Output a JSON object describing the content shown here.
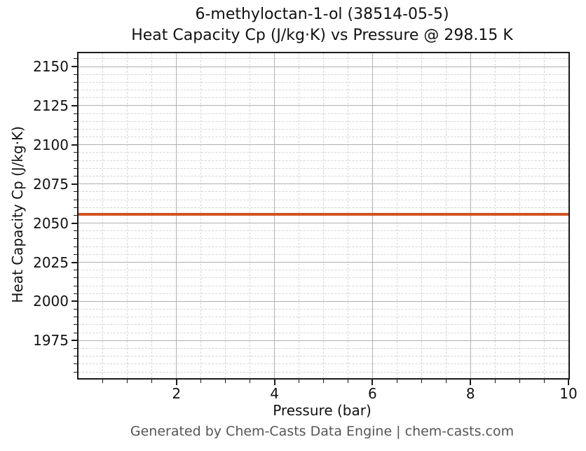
{
  "figure": {
    "title_line1": "6-methyloctan-1-ol (38514-05-5)",
    "title_line2": "Heat Capacity Cp (J/kg·K) vs Pressure @ 298.15 K",
    "footer": "Generated by Chem-Casts Data Engine | chem-casts.com"
  },
  "chart_data": {
    "type": "line",
    "title": "6-methyloctan-1-ol (38514-05-5)",
    "subtitle": "Heat Capacity Cp (J/kg·K) vs Pressure @ 298.15 K",
    "compound": "6-methyloctan-1-ol",
    "cas_number": "38514-05-5",
    "temperature_K": "298.15",
    "xlabel": "Pressure (bar)",
    "ylabel": "Heat Capacity Cp (J/kg·K)",
    "xlim": [
      0,
      10
    ],
    "ylim": [
      1951,
      2158.5
    ],
    "x_major_ticks": [
      2,
      4,
      6,
      8,
      10
    ],
    "x_minor_tick_step": 0.5,
    "y_major_ticks": [
      1975,
      2000,
      2025,
      2050,
      2075,
      2100,
      2125,
      2150
    ],
    "y_minor_tick_step": 5,
    "grid": {
      "major_style": "solid",
      "minor_style": "dashed"
    },
    "legend": "none",
    "series": [
      {
        "name": "Heat Capacity Cp",
        "color": "#d0531f",
        "x": [
          0,
          10
        ],
        "y": [
          2055.5,
          2055.5
        ]
      }
    ]
  },
  "colors": {
    "line": "#d0531f",
    "major_grid": "#b0b0b0",
    "minor_grid": "#d6d6d6",
    "spine": "#1a1a1a",
    "text": "#111111",
    "footer_text": "#555555",
    "background": "#ffffff"
  }
}
